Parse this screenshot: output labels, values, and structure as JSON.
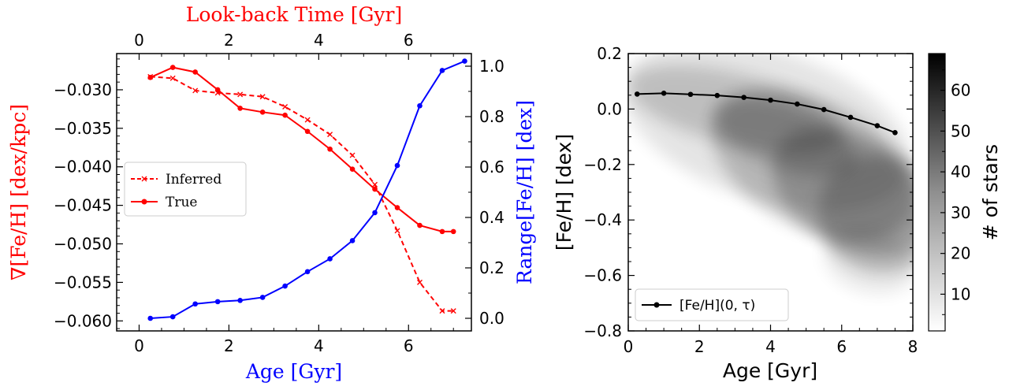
{
  "colors": {
    "red": "#ff0000",
    "blue": "#0000ff",
    "black": "#000000"
  },
  "chart_data": [
    {
      "type": "line",
      "xlabel": "Age [Gyr]",
      "top_xlabel": "Look-back Time [Gyr]",
      "ylabel_left": "∇[Fe/H] [dex/kpc]",
      "ylabel_right": "Range[Fe/H] [dex]",
      "xlim": [
        -0.5,
        7.4
      ],
      "ylim_left": [
        -0.0613,
        -0.0253
      ],
      "ylim_right": [
        -0.05,
        1.05
      ],
      "xticks": [
        0,
        2,
        4,
        6
      ],
      "xtick_labels": [
        "0",
        "2",
        "4",
        "6"
      ],
      "top_xticks": [
        0,
        2,
        4,
        6
      ],
      "top_xtick_labels": [
        "0",
        "2",
        "4",
        "6"
      ],
      "yticks_left": [
        -0.03,
        -0.035,
        -0.04,
        -0.045,
        -0.05,
        -0.055,
        -0.06
      ],
      "ytick_labels_left": [
        "−0.030",
        "−0.035",
        "−0.040",
        "−0.045",
        "−0.050",
        "−0.055",
        "−0.060"
      ],
      "yticks_right": [
        0.0,
        0.2,
        0.4,
        0.6,
        0.8,
        1.0
      ],
      "ytick_labels_right": [
        "0.0",
        "0.2",
        "0.4",
        "0.6",
        "0.8",
        "1.0"
      ],
      "legend": {
        "position": "center-left",
        "entries": [
          "Inferred",
          "True"
        ]
      },
      "series": [
        {
          "name": "Inferred",
          "axis": "left",
          "color": "#ff0000",
          "style": "dashed",
          "marker": "x",
          "x": [
            0.25,
            0.75,
            1.25,
            1.75,
            2.25,
            2.75,
            3.25,
            3.75,
            4.25,
            4.75,
            5.25,
            5.75,
            6.25,
            6.75,
            7.0
          ],
          "values": [
            -0.0283,
            -0.0285,
            -0.0301,
            -0.0304,
            -0.0306,
            -0.0309,
            -0.0322,
            -0.0339,
            -0.0358,
            -0.0385,
            -0.0423,
            -0.0483,
            -0.055,
            -0.0587,
            -0.0587
          ]
        },
        {
          "name": "True",
          "axis": "left",
          "color": "#ff0000",
          "style": "solid",
          "marker": "o",
          "x": [
            0.25,
            0.75,
            1.25,
            1.75,
            2.25,
            2.75,
            3.25,
            3.75,
            4.25,
            4.75,
            5.25,
            5.75,
            6.25,
            6.75,
            7.0
          ],
          "values": [
            -0.0284,
            -0.0271,
            -0.0277,
            -0.03,
            -0.0324,
            -0.0329,
            -0.0333,
            -0.0354,
            -0.0377,
            -0.0403,
            -0.0429,
            -0.0453,
            -0.0476,
            -0.0484,
            -0.0484
          ]
        },
        {
          "name": "Range",
          "axis": "right",
          "color": "#0000ff",
          "style": "solid",
          "marker": "o",
          "x": [
            0.25,
            0.75,
            1.25,
            1.75,
            2.25,
            2.75,
            3.25,
            3.75,
            4.25,
            4.75,
            5.25,
            5.75,
            6.25,
            6.75,
            7.25
          ],
          "values": [
            0.0,
            0.006,
            0.057,
            0.066,
            0.071,
            0.083,
            0.128,
            0.185,
            0.236,
            0.308,
            0.419,
            0.606,
            0.843,
            0.983,
            1.02
          ]
        }
      ]
    },
    {
      "type": "heatmap",
      "xlabel": "Age [Gyr]",
      "ylabel": "[Fe/H] [dex]",
      "xlim": [
        0,
        8
      ],
      "ylim": [
        -0.8,
        0.2
      ],
      "xticks": [
        0,
        2,
        4,
        6,
        8
      ],
      "xtick_labels": [
        "0",
        "2",
        "4",
        "6",
        "8"
      ],
      "yticks": [
        0.2,
        0.0,
        -0.2,
        -0.4,
        -0.6,
        -0.8
      ],
      "ytick_labels": [
        "0.2",
        "0.0",
        "−0.2",
        "−0.4",
        "−0.6",
        "−0.8"
      ],
      "colorbar": {
        "label": "# of stars",
        "range": [
          1,
          69
        ],
        "ticks": [
          10,
          20,
          30,
          40,
          50,
          60
        ],
        "tick_labels": [
          "10",
          "20",
          "30",
          "40",
          "50",
          "60"
        ]
      },
      "legend": {
        "position": "lower-left",
        "entries": [
          "[Fe/H](0, τ)"
        ]
      },
      "series": [
        {
          "name": "[Fe/H](0, τ)",
          "color": "#000000",
          "style": "solid",
          "marker": "o",
          "x": [
            0.25,
            1.0,
            1.75,
            2.5,
            3.25,
            4.0,
            4.75,
            5.5,
            6.25,
            7.0,
            7.5
          ],
          "values": [
            0.054,
            0.057,
            0.053,
            0.049,
            0.042,
            0.032,
            0.018,
            -0.002,
            -0.03,
            -0.06,
            -0.085
          ]
        }
      ]
    }
  ]
}
